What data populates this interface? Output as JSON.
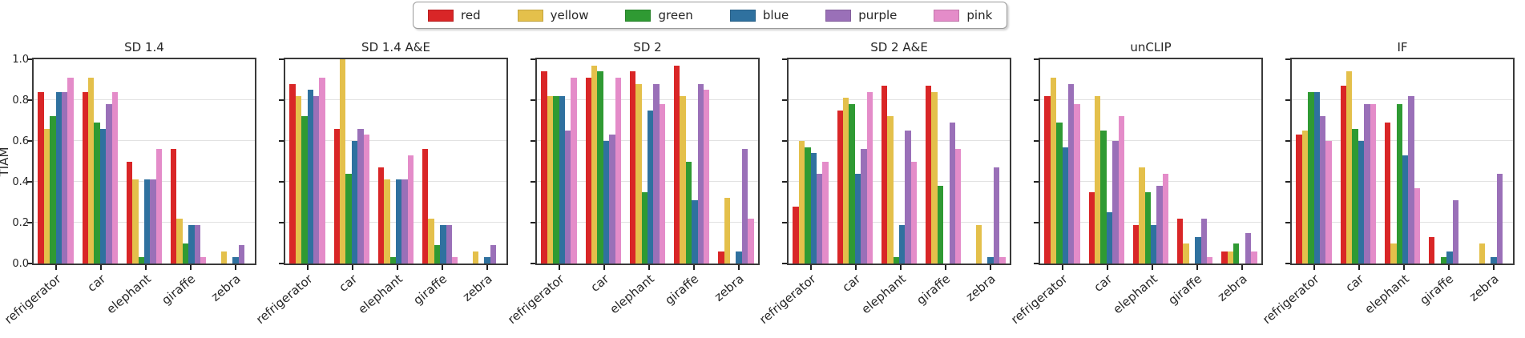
{
  "figure": {
    "ylabel": "TIAM",
    "yticks": [
      "1.0",
      "0.8",
      "0.6",
      "0.4",
      "0.2",
      "0.0"
    ]
  },
  "legend": {
    "entries": [
      {
        "label": "red",
        "color": "#d92627"
      },
      {
        "label": "yellow",
        "color": "#e4c04b"
      },
      {
        "label": "green",
        "color": "#2f9a33"
      },
      {
        "label": "blue",
        "color": "#2f719f"
      },
      {
        "label": "purple",
        "color": "#9a70b8"
      },
      {
        "label": "pink",
        "color": "#e48cc9"
      }
    ]
  },
  "chart_data": {
    "type": "bar",
    "categories": [
      "refrigerator",
      "car",
      "elephant",
      "giraffe",
      "zebra"
    ],
    "series_names": [
      "red",
      "yellow",
      "green",
      "blue",
      "purple",
      "pink"
    ],
    "colors": {
      "red": "#d92627",
      "yellow": "#e4c04b",
      "green": "#2f9a33",
      "blue": "#2f719f",
      "purple": "#9a70b8",
      "pink": "#e48cc9"
    },
    "ylabel": "TIAM",
    "ylim": [
      0,
      1.0
    ],
    "grid": true,
    "legend_position": "top-center",
    "subplots": [
      {
        "title": "SD 1.4",
        "series": [
          {
            "name": "red",
            "values": [
              0.84,
              0.84,
              0.5,
              0.56,
              0.0
            ]
          },
          {
            "name": "yellow",
            "values": [
              0.66,
              0.91,
              0.41,
              0.22,
              0.06
            ]
          },
          {
            "name": "green",
            "values": [
              0.72,
              0.69,
              0.03,
              0.1,
              0.0
            ]
          },
          {
            "name": "blue",
            "values": [
              0.84,
              0.66,
              0.41,
              0.19,
              0.03
            ]
          },
          {
            "name": "purple",
            "values": [
              0.84,
              0.78,
              0.41,
              0.19,
              0.09
            ]
          },
          {
            "name": "pink",
            "values": [
              0.91,
              0.84,
              0.56,
              0.03,
              0.0
            ]
          }
        ]
      },
      {
        "title": "SD 1.4 A&E",
        "series": [
          {
            "name": "red",
            "values": [
              0.88,
              0.66,
              0.47,
              0.56,
              0.0
            ]
          },
          {
            "name": "yellow",
            "values": [
              0.82,
              1.0,
              0.41,
              0.22,
              0.06
            ]
          },
          {
            "name": "green",
            "values": [
              0.72,
              0.44,
              0.03,
              0.09,
              0.0
            ]
          },
          {
            "name": "blue",
            "values": [
              0.85,
              0.6,
              0.41,
              0.19,
              0.03
            ]
          },
          {
            "name": "purple",
            "values": [
              0.82,
              0.66,
              0.41,
              0.19,
              0.09
            ]
          },
          {
            "name": "pink",
            "values": [
              0.91,
              0.63,
              0.53,
              0.03,
              0.0
            ]
          }
        ]
      },
      {
        "title": "SD 2",
        "series": [
          {
            "name": "red",
            "values": [
              0.94,
              0.91,
              0.94,
              0.97,
              0.06
            ]
          },
          {
            "name": "yellow",
            "values": [
              0.82,
              0.97,
              0.88,
              0.82,
              0.32
            ]
          },
          {
            "name": "green",
            "values": [
              0.82,
              0.94,
              0.35,
              0.5,
              0.0
            ]
          },
          {
            "name": "blue",
            "values": [
              0.82,
              0.6,
              0.75,
              0.31,
              0.06
            ]
          },
          {
            "name": "purple",
            "values": [
              0.65,
              0.63,
              0.88,
              0.88,
              0.56
            ]
          },
          {
            "name": "pink",
            "values": [
              0.91,
              0.91,
              0.78,
              0.85,
              0.22
            ]
          }
        ]
      },
      {
        "title": "SD 2 A&E",
        "series": [
          {
            "name": "red",
            "values": [
              0.28,
              0.75,
              0.87,
              0.87,
              0.0
            ]
          },
          {
            "name": "yellow",
            "values": [
              0.6,
              0.81,
              0.72,
              0.84,
              0.19
            ]
          },
          {
            "name": "green",
            "values": [
              0.57,
              0.78,
              0.03,
              0.38,
              0.0
            ]
          },
          {
            "name": "blue",
            "values": [
              0.54,
              0.44,
              0.19,
              0.0,
              0.03
            ]
          },
          {
            "name": "purple",
            "values": [
              0.44,
              0.56,
              0.65,
              0.69,
              0.47
            ]
          },
          {
            "name": "pink",
            "values": [
              0.5,
              0.84,
              0.5,
              0.56,
              0.03
            ]
          }
        ]
      },
      {
        "title": "unCLIP",
        "series": [
          {
            "name": "red",
            "values": [
              0.82,
              0.35,
              0.19,
              0.22,
              0.06
            ]
          },
          {
            "name": "yellow",
            "values": [
              0.91,
              0.82,
              0.47,
              0.1,
              0.06
            ]
          },
          {
            "name": "green",
            "values": [
              0.69,
              0.65,
              0.35,
              0.0,
              0.1
            ]
          },
          {
            "name": "blue",
            "values": [
              0.57,
              0.25,
              0.19,
              0.13,
              0.0
            ]
          },
          {
            "name": "purple",
            "values": [
              0.88,
              0.6,
              0.38,
              0.22,
              0.15
            ]
          },
          {
            "name": "pink",
            "values": [
              0.78,
              0.72,
              0.44,
              0.03,
              0.06
            ]
          }
        ]
      },
      {
        "title": "IF",
        "series": [
          {
            "name": "red",
            "values": [
              0.63,
              0.87,
              0.69,
              0.13,
              0.0
            ]
          },
          {
            "name": "yellow",
            "values": [
              0.65,
              0.94,
              0.1,
              0.0,
              0.1
            ]
          },
          {
            "name": "green",
            "values": [
              0.84,
              0.66,
              0.78,
              0.03,
              0.0
            ]
          },
          {
            "name": "blue",
            "values": [
              0.84,
              0.6,
              0.53,
              0.06,
              0.03
            ]
          },
          {
            "name": "purple",
            "values": [
              0.72,
              0.78,
              0.82,
              0.31,
              0.44
            ]
          },
          {
            "name": "pink",
            "values": [
              0.6,
              0.78,
              0.37,
              0.0,
              0.0
            ]
          }
        ]
      }
    ]
  }
}
